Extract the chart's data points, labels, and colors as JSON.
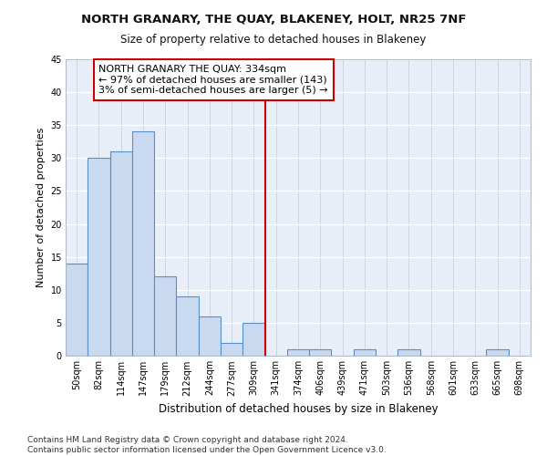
{
  "title": "NORTH GRANARY, THE QUAY, BLAKENEY, HOLT, NR25 7NF",
  "subtitle": "Size of property relative to detached houses in Blakeney",
  "xlabel": "Distribution of detached houses by size in Blakeney",
  "ylabel": "Number of detached properties",
  "bar_labels": [
    "50sqm",
    "82sqm",
    "114sqm",
    "147sqm",
    "179sqm",
    "212sqm",
    "244sqm",
    "277sqm",
    "309sqm",
    "341sqm",
    "374sqm",
    "406sqm",
    "439sqm",
    "471sqm",
    "503sqm",
    "536sqm",
    "568sqm",
    "601sqm",
    "633sqm",
    "665sqm",
    "698sqm"
  ],
  "bar_values": [
    14,
    30,
    31,
    34,
    12,
    9,
    6,
    2,
    5,
    0,
    1,
    1,
    0,
    1,
    0,
    1,
    0,
    0,
    0,
    1,
    0
  ],
  "bar_color": "#c9d9f0",
  "bar_edgecolor": "#5b8fc9",
  "vline_color": "#cc0000",
  "annotation_line1": "NORTH GRANARY THE QUAY: 334sqm",
  "annotation_line2": "← 97% of detached houses are smaller (143)",
  "annotation_line3": "3% of semi-detached houses are larger (5) →",
  "annotation_box_edgecolor": "#cc0000",
  "annotation_box_facecolor": "#ffffff",
  "ylim": [
    0,
    45
  ],
  "yticks": [
    0,
    5,
    10,
    15,
    20,
    25,
    30,
    35,
    40,
    45
  ],
  "footer_text": "Contains HM Land Registry data © Crown copyright and database right 2024.\nContains public sector information licensed under the Open Government Licence v3.0.",
  "background_color": "#e8eef8",
  "title_fontsize": 9.5,
  "subtitle_fontsize": 8.5,
  "xlabel_fontsize": 8.5,
  "ylabel_fontsize": 8,
  "tick_fontsize": 7,
  "annotation_fontsize": 8,
  "footer_fontsize": 6.5
}
